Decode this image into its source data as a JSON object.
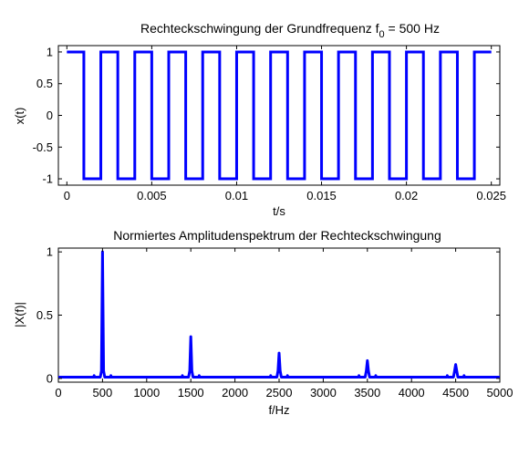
{
  "chart_data": [
    {
      "type": "line",
      "title": "Rechteckschwingung der Grundfrequenz f",
      "title_subscript": "0",
      "title_suffix": " = 500 Hz",
      "xlabel": "t/s",
      "ylabel": "x(t)",
      "xlim": [
        -0.0005,
        0.0255
      ],
      "ylim": [
        -1.1,
        1.1
      ],
      "xticks": [
        0,
        0.005,
        0.01,
        0.015,
        0.02,
        0.025
      ],
      "xtick_labels": [
        "0",
        "0.005",
        "0.01",
        "0.015",
        "0.02",
        "0.025"
      ],
      "yticks": [
        -1,
        -0.5,
        0,
        0.5,
        1
      ],
      "ytick_labels": [
        "-1",
        "-0.5",
        "0",
        "0.5",
        "1"
      ],
      "grid": false,
      "series": [
        {
          "color": "#0000ff",
          "x": [
            0,
            0.001,
            0.001,
            0.002,
            0.002,
            0.003,
            0.003,
            0.004,
            0.004,
            0.005,
            0.005,
            0.006,
            0.006,
            0.007,
            0.007,
            0.008,
            0.008,
            0.009,
            0.009,
            0.01,
            0.01,
            0.011,
            0.011,
            0.012,
            0.012,
            0.013,
            0.013,
            0.014,
            0.014,
            0.015,
            0.015,
            0.016,
            0.016,
            0.017,
            0.017,
            0.018,
            0.018,
            0.019,
            0.019,
            0.02,
            0.02,
            0.021,
            0.021,
            0.022,
            0.022,
            0.023,
            0.023,
            0.024,
            0.024,
            0.025
          ],
          "y": [
            1,
            1,
            -1,
            -1,
            1,
            1,
            -1,
            -1,
            1,
            1,
            -1,
            -1,
            1,
            1,
            -1,
            -1,
            1,
            1,
            -1,
            -1,
            1,
            1,
            -1,
            -1,
            1,
            1,
            -1,
            -1,
            1,
            1,
            -1,
            -1,
            1,
            1,
            -1,
            -1,
            1,
            1,
            -1,
            -1,
            1,
            1,
            -1,
            -1,
            1,
            1,
            -1,
            -1,
            1,
            1
          ]
        }
      ]
    },
    {
      "type": "line",
      "title": "Normiertes Amplitudenspektrum der Rechteckschwingung",
      "xlabel": "f/Hz",
      "ylabel": "|X(f)|",
      "xlim": [
        0,
        5000
      ],
      "ylim": [
        -0.03,
        1.03
      ],
      "xticks": [
        0,
        500,
        1000,
        1500,
        2000,
        2500,
        3000,
        3500,
        4000,
        4500,
        5000
      ],
      "xtick_labels": [
        "0",
        "500",
        "1000",
        "1500",
        "2000",
        "2500",
        "3000",
        "3500",
        "4000",
        "4500",
        "5000"
      ],
      "yticks": [
        0,
        0.5,
        1
      ],
      "ytick_labels": [
        "0",
        "0.5",
        "1"
      ],
      "grid": false,
      "series": [
        {
          "color": "#0000ff",
          "peaks": [
            {
              "f": 500,
              "amplitude": 1.0
            },
            {
              "f": 1500,
              "amplitude": 0.33
            },
            {
              "f": 2500,
              "amplitude": 0.2
            },
            {
              "f": 3500,
              "amplitude": 0.14
            },
            {
              "f": 4500,
              "amplitude": 0.11
            }
          ],
          "baseline": 0.01
        }
      ]
    }
  ]
}
